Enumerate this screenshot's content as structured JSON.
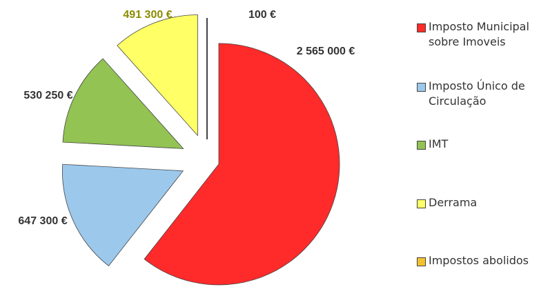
{
  "chart_data": {
    "type": "pie",
    "categories": [
      "Imposto Municipal sobre Imoveis",
      "Imposto Único de Circulação",
      "IMT",
      "Derrama",
      "Impostos abolidos"
    ],
    "values": [
      2565000,
      647300,
      530250,
      491300,
      100
    ],
    "value_labels": [
      "2 565 000 €",
      "647 300 €",
      "530 250 €",
      "491 300 €",
      "100 €"
    ],
    "colors": [
      "#ff2a2a",
      "#9cc8ec",
      "#92c353",
      "#ffff66",
      "#f2c230"
    ],
    "legend": "right"
  }
}
